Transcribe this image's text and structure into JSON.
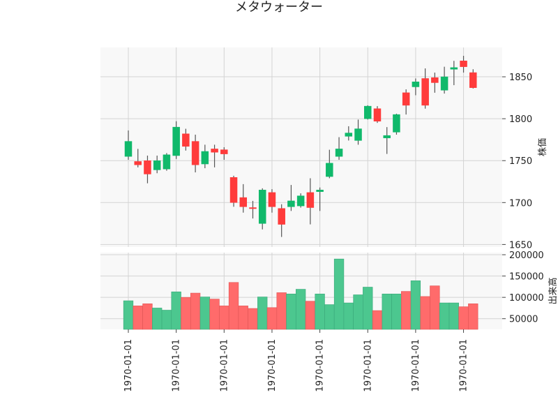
{
  "chart_data": {
    "type": "candlestick",
    "title": "メタウォーター",
    "colors": {
      "up": "#10b96b",
      "down": "#ff3b3b",
      "volume_up": "#4cc78f",
      "volume_down": "#ff6b6b",
      "plot_background": "#f8f8f8",
      "grid": "#d3d3d3",
      "wick": "#555555"
    },
    "x_tick_labels": [
      "1970-01-01",
      "1970-01-01",
      "1970-01-01",
      "1970-01-01",
      "1970-01-01",
      "1970-01-01",
      "1970-01-01",
      "1970-01-01"
    ],
    "x_tick_indices": [
      0,
      5,
      10,
      15,
      20,
      25,
      30,
      35
    ],
    "price_axis": {
      "label": "株価",
      "ylim": [
        1647,
        1885
      ],
      "ticks": [
        1650,
        1700,
        1750,
        1800,
        1850
      ],
      "tick_labels": [
        "1650",
        "1700",
        "1750",
        "1800",
        "1850"
      ]
    },
    "volume_axis": {
      "label": "出来高",
      "ylim": [
        25000,
        205000
      ],
      "ticks": [
        50000,
        100000,
        150000,
        200000
      ],
      "tick_labels": [
        "50000",
        "100000",
        "150000",
        "200000"
      ]
    },
    "grid": true,
    "candles": [
      {
        "open": 1755,
        "high": 1786,
        "low": 1751,
        "close": 1773,
        "volume": 92000
      },
      {
        "open": 1749,
        "high": 1764,
        "low": 1742,
        "close": 1745,
        "volume": 80000
      },
      {
        "open": 1750,
        "high": 1756,
        "low": 1723,
        "close": 1734,
        "volume": 85000
      },
      {
        "open": 1739,
        "high": 1756,
        "low": 1735,
        "close": 1750,
        "volume": 75000
      },
      {
        "open": 1740,
        "high": 1759,
        "low": 1738,
        "close": 1757,
        "volume": 70000
      },
      {
        "open": 1756,
        "high": 1797,
        "low": 1752,
        "close": 1790,
        "volume": 113000
      },
      {
        "open": 1782,
        "high": 1788,
        "low": 1762,
        "close": 1767,
        "volume": 100000
      },
      {
        "open": 1773,
        "high": 1781,
        "low": 1736,
        "close": 1745,
        "volume": 110000
      },
      {
        "open": 1746,
        "high": 1769,
        "low": 1741,
        "close": 1761,
        "volume": 101000
      },
      {
        "open": 1764,
        "high": 1769,
        "low": 1742,
        "close": 1760,
        "volume": 96000
      },
      {
        "open": 1763,
        "high": 1766,
        "low": 1751,
        "close": 1758,
        "volume": 80000
      },
      {
        "open": 1730,
        "high": 1732,
        "low": 1695,
        "close": 1700,
        "volume": 135000
      },
      {
        "open": 1706,
        "high": 1722,
        "low": 1688,
        "close": 1695,
        "volume": 80000
      },
      {
        "open": 1694,
        "high": 1702,
        "low": 1681,
        "close": 1693,
        "volume": 74000
      },
      {
        "open": 1675,
        "high": 1717,
        "low": 1668,
        "close": 1715,
        "volume": 101000
      },
      {
        "open": 1712,
        "high": 1716,
        "low": 1688,
        "close": 1695,
        "volume": 76000
      },
      {
        "open": 1693,
        "high": 1698,
        "low": 1659,
        "close": 1674,
        "volume": 111000
      },
      {
        "open": 1695,
        "high": 1721,
        "low": 1690,
        "close": 1702,
        "volume": 108000
      },
      {
        "open": 1696,
        "high": 1711,
        "low": 1694,
        "close": 1708,
        "volume": 119000
      },
      {
        "open": 1712,
        "high": 1729,
        "low": 1674,
        "close": 1694,
        "volume": 91000
      },
      {
        "open": 1713,
        "high": 1718,
        "low": 1690,
        "close": 1715,
        "volume": 108000
      },
      {
        "open": 1731,
        "high": 1763,
        "low": 1729,
        "close": 1747,
        "volume": 83000
      },
      {
        "open": 1755,
        "high": 1778,
        "low": 1751,
        "close": 1764,
        "volume": 190000
      },
      {
        "open": 1779,
        "high": 1791,
        "low": 1774,
        "close": 1783,
        "volume": 87000
      },
      {
        "open": 1774,
        "high": 1799,
        "low": 1769,
        "close": 1788,
        "volume": 106000
      },
      {
        "open": 1800,
        "high": 1816,
        "low": 1799,
        "close": 1815,
        "volume": 124000
      },
      {
        "open": 1812,
        "high": 1815,
        "low": 1795,
        "close": 1797,
        "volume": 69000
      },
      {
        "open": 1777,
        "high": 1790,
        "low": 1758,
        "close": 1780,
        "volume": 108000
      },
      {
        "open": 1784,
        "high": 1806,
        "low": 1781,
        "close": 1805,
        "volume": 108000
      },
      {
        "open": 1831,
        "high": 1835,
        "low": 1805,
        "close": 1816,
        "volume": 114000
      },
      {
        "open": 1838,
        "high": 1848,
        "low": 1828,
        "close": 1844,
        "volume": 139000
      },
      {
        "open": 1848,
        "high": 1860,
        "low": 1812,
        "close": 1816,
        "volume": 102000
      },
      {
        "open": 1849,
        "high": 1855,
        "low": 1831,
        "close": 1843,
        "volume": 127000
      },
      {
        "open": 1834,
        "high": 1862,
        "low": 1830,
        "close": 1850,
        "volume": 87000
      },
      {
        "open": 1859,
        "high": 1869,
        "low": 1840,
        "close": 1861,
        "volume": 87000
      },
      {
        "open": 1869,
        "high": 1875,
        "low": 1855,
        "close": 1862,
        "volume": 78000
      },
      {
        "open": 1855,
        "high": 1859,
        "low": 1836,
        "close": 1837,
        "volume": 85000
      }
    ]
  }
}
